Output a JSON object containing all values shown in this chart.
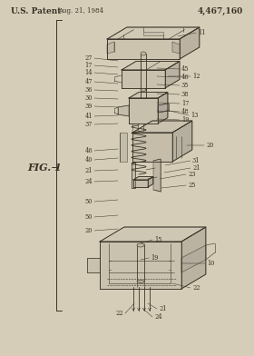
{
  "bg_color": "#d6cdb8",
  "line_color": "#3a3428",
  "header_patent": "U.S. Patent",
  "header_date": "Aug. 21, 1984",
  "header_number": "4,467,160",
  "fig_label": "FIG. 1",
  "title_fontsize": 6.5,
  "label_fontsize": 4.8,
  "fig_label_fontsize": 8.0,
  "shade_top": "#cfc8b4",
  "shade_mid": "#bfb8a5",
  "shade_dark": "#afa89a"
}
